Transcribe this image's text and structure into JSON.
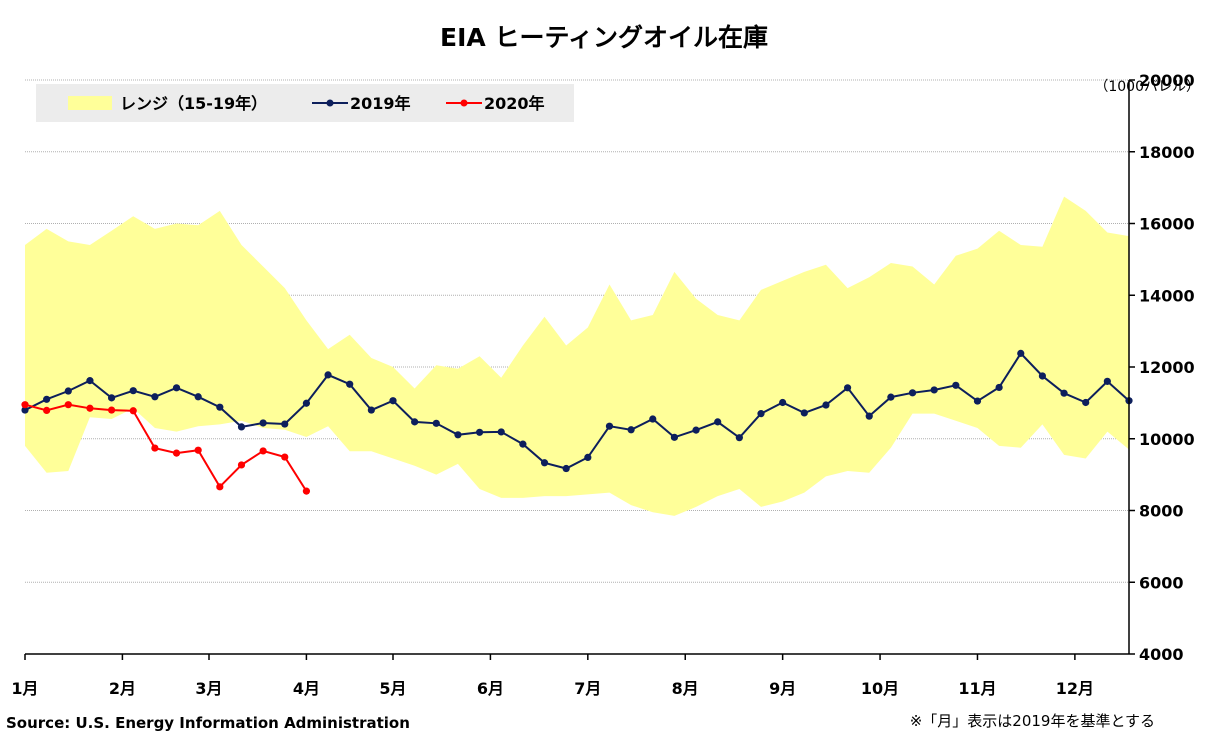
{
  "title": "EIA ヒーティングオイル在庫",
  "unit_label": "（1000バレル）",
  "source": "Source: U.S. Energy Information Administration",
  "note": "※「月」表示は2019年を基準とする",
  "legend": {
    "range": "レンジ（15-19年）",
    "s2019": "2019年",
    "s2020": "2020年"
  },
  "colors": {
    "range_fill": "#ffff99",
    "s2019": "#0d1f5c",
    "s2020": "#ff0000",
    "legend_bg": "#ececec"
  },
  "chart_data": {
    "type": "line",
    "title": "EIA ヒーティングオイル在庫",
    "ylabel": "（1000バレル）",
    "ylim": [
      4000,
      20000
    ],
    "yticks": [
      4000,
      6000,
      8000,
      10000,
      12000,
      14000,
      16000,
      18000,
      20000
    ],
    "y_axis_side": "right",
    "grid": true,
    "legend_position": "top-left",
    "x_count": 52,
    "month_labels": [
      "1月",
      "2月",
      "3月",
      "4月",
      "5月",
      "6月",
      "7月",
      "8月",
      "9月",
      "10月",
      "11月",
      "12月"
    ],
    "month_week_index": [
      0,
      4.5,
      8.5,
      13,
      17,
      21.5,
      26,
      30.5,
      35,
      39.5,
      44,
      48.5
    ],
    "range_band": {
      "name": "レンジ（15-19年）",
      "upper": [
        15400,
        15850,
        15500,
        15400,
        15800,
        16200,
        15850,
        16000,
        15950,
        16350,
        15400,
        14800,
        14200,
        13300,
        12500,
        12900,
        12250,
        12000,
        11400,
        12050,
        11950,
        12300,
        11700,
        12600,
        13400,
        12600,
        13100,
        14300,
        13300,
        13450,
        14650,
        13900,
        13450,
        13300,
        14150,
        14400,
        14650,
        14850,
        14200,
        14500,
        14900,
        14800,
        14300,
        15100,
        15300,
        15800,
        15400,
        15350,
        16750,
        16350,
        15750,
        15650
      ],
      "lower": [
        9800,
        9050,
        9100,
        10600,
        10550,
        10850,
        10300,
        10200,
        10350,
        10400,
        10500,
        10300,
        10250,
        10050,
        10350,
        9650,
        9650,
        9450,
        9250,
        9000,
        9300,
        8600,
        8350,
        8350,
        8400,
        8400,
        8450,
        8500,
        8150,
        7950,
        7850,
        8100,
        8400,
        8600,
        8100,
        8250,
        8500,
        8950,
        9100,
        9050,
        9750,
        10700,
        10700,
        10500,
        10300,
        9800,
        9750,
        10400,
        9550,
        9450,
        10200,
        9700
      ]
    },
    "series": [
      {
        "name": "2019年",
        "values": [
          10800,
          11100,
          11330,
          11620,
          11140,
          11340,
          11170,
          11420,
          11170,
          10880,
          10330,
          10440,
          10410,
          10990,
          11780,
          11520,
          10800,
          11060,
          10470,
          10430,
          10110,
          10180,
          10190,
          9850,
          9330,
          9170,
          9480,
          10350,
          10250,
          10550,
          10040,
          10240,
          10470,
          10030,
          10700,
          11010,
          10720,
          10940,
          11420,
          10630,
          11160,
          11280,
          11360,
          11490,
          11050,
          11430,
          12380,
          11750,
          11270,
          11010,
          11600,
          11060
        ]
      },
      {
        "name": "2020年",
        "values": [
          10950,
          10790,
          10950,
          10850,
          10800,
          10780,
          9740,
          9600,
          9680,
          8660,
          9270,
          9660,
          9490,
          8540
        ]
      }
    ]
  }
}
